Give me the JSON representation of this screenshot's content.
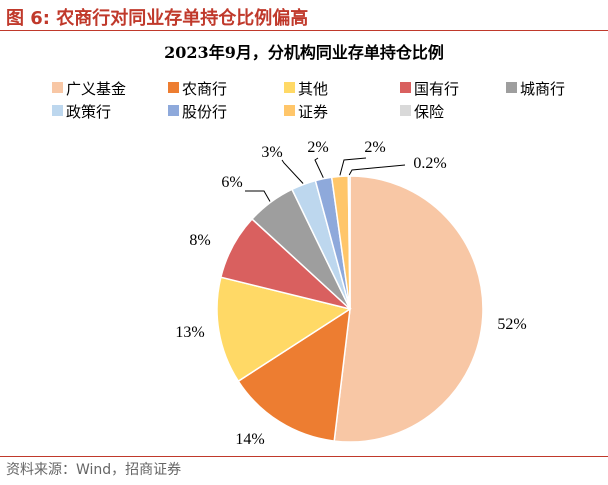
{
  "figure": {
    "caption": "图 6:  农商行对同业存单持仓比例偏高",
    "source": "资料来源：Wind，招商证券"
  },
  "chart_data": {
    "type": "pie",
    "title": "2023年9月，分机构同业存单持仓比例",
    "legend_position": "top",
    "slices": [
      {
        "name": "广义基金",
        "value": 52,
        "label": "52%",
        "color": "#F8C7A5"
      },
      {
        "name": "农商行",
        "value": 14,
        "label": "14%",
        "color": "#ED7D31"
      },
      {
        "name": "其他",
        "value": 13,
        "label": "13%",
        "color": "#FFD966"
      },
      {
        "name": "国有行",
        "value": 8,
        "label": "8%",
        "color": "#D9605F"
      },
      {
        "name": "城商行",
        "value": 6,
        "label": "6%",
        "color": "#9E9E9E"
      },
      {
        "name": "政策行",
        "value": 3,
        "label": "3%",
        "color": "#BDD7EE"
      },
      {
        "name": "股份行",
        "value": 2,
        "label": "2%",
        "color": "#8EA9DB"
      },
      {
        "name": "证券",
        "value": 2,
        "label": "2%",
        "color": "#FFC66A"
      },
      {
        "name": "保险",
        "value": 0.2,
        "label": "0.2%",
        "color": "#D9D9D9"
      }
    ]
  }
}
